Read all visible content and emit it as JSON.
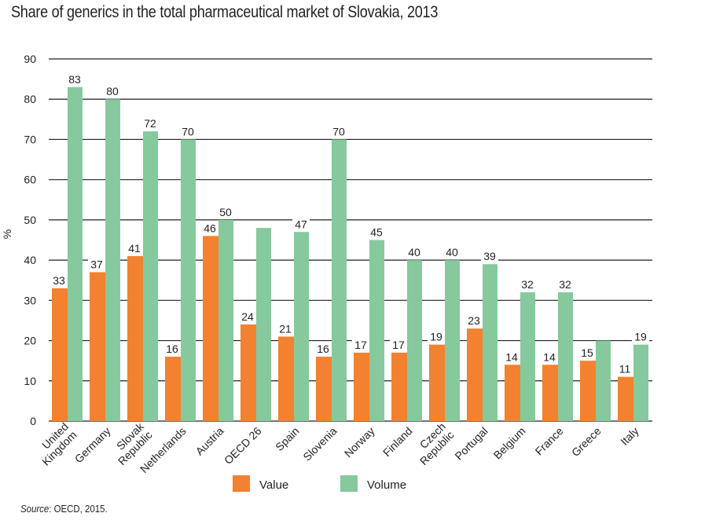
{
  "chart_data": {
    "type": "bar",
    "title": "Share of generics in the total pharmaceutical market of Slovakia, 2013",
    "xlabel": "",
    "ylabel": "%",
    "ylim": [
      0,
      90
    ],
    "yticks": [
      0,
      10,
      20,
      30,
      40,
      50,
      60,
      70,
      80,
      90
    ],
    "grid": true,
    "legend_position": "bottom-center",
    "categories": [
      "United Kingdom",
      "Germany",
      "Slovak Republic",
      "Netherlands",
      "Austria",
      "OECD 26",
      "Spain",
      "Slovenia",
      "Norway",
      "Finland",
      "Czech Republic",
      "Portugal",
      "Belgium",
      "France",
      "Greece",
      "Italy"
    ],
    "category_label_lines": [
      [
        "United",
        "Kingdom"
      ],
      [
        "Germany"
      ],
      [
        "Slovak",
        "Republic"
      ],
      [
        "Netherlands"
      ],
      [
        "Austria"
      ],
      [
        "OECD 26"
      ],
      [
        "Spain"
      ],
      [
        "Slovenia"
      ],
      [
        "Norway"
      ],
      [
        "Finland"
      ],
      [
        "Czech",
        "Republic"
      ],
      [
        "Portugal"
      ],
      [
        "Belgium"
      ],
      [
        "France"
      ],
      [
        "Greece"
      ],
      [
        "Italy"
      ]
    ],
    "series": [
      {
        "name": "Value",
        "color": "#f28130",
        "values": [
          33,
          37,
          41,
          16,
          46,
          24,
          21,
          16,
          17,
          17,
          19,
          23,
          14,
          14,
          15,
          11
        ],
        "labels_shown": [
          true,
          true,
          true,
          true,
          true,
          true,
          true,
          true,
          true,
          true,
          true,
          true,
          true,
          true,
          true,
          true
        ]
      },
      {
        "name": "Volume",
        "color": "#85c99d",
        "values": [
          83,
          80,
          72,
          70,
          50,
          48,
          47,
          70,
          45,
          40,
          40,
          39,
          32,
          32,
          20,
          19
        ],
        "labels_shown": [
          true,
          true,
          true,
          true,
          true,
          false,
          true,
          true,
          true,
          true,
          true,
          true,
          true,
          true,
          false,
          true
        ]
      }
    ]
  },
  "source": {
    "prefix": "Source",
    "text": ": OECD, 2015."
  }
}
